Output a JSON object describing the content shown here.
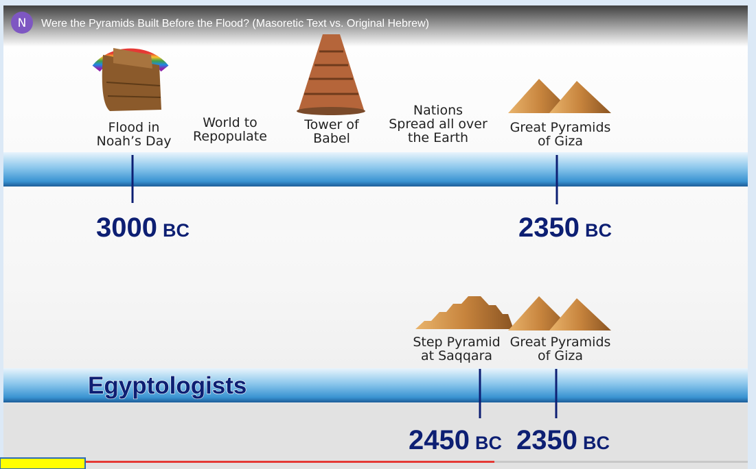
{
  "video": {
    "channel_initial": "N",
    "title": "Were the Pyramids Built Before the Flood? (Masoretic Text vs. Original Hebrew)"
  },
  "timeline_top": {
    "events": [
      {
        "lines": [
          "Flood in",
          "Noah’s Day"
        ]
      },
      {
        "lines": [
          "World to",
          "Repopulate"
        ]
      },
      {
        "lines": [
          "Tower of",
          "Babel"
        ]
      },
      {
        "lines": [
          "Nations",
          "Spread all over",
          "the Earth"
        ]
      },
      {
        "lines": [
          "Great Pyramids",
          "of Giza"
        ]
      }
    ],
    "dates": [
      {
        "year": "3000",
        "era": "BC"
      },
      {
        "year": "2350",
        "era": "BC"
      }
    ]
  },
  "timeline_bottom": {
    "label": "Egyptologists",
    "events": [
      {
        "lines": [
          "Step Pyramid",
          "at Saqqara"
        ]
      },
      {
        "lines": [
          "Great Pyramids",
          "of Giza"
        ]
      }
    ],
    "dates": [
      {
        "year": "2450",
        "era": "BC"
      },
      {
        "year": "2350",
        "era": "BC"
      }
    ]
  }
}
